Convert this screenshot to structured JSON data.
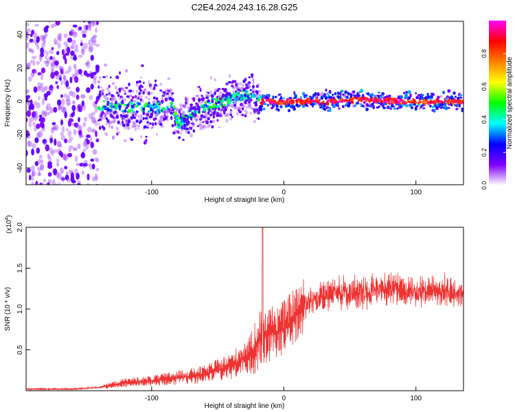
{
  "title": "C2E4.2024.243.16.28.G25",
  "chart_data": [
    {
      "type": "heatmap",
      "xlabel": "Height of straight line (km)",
      "ylabel": "Frequency (Hz)",
      "xlim": [
        -195,
        136
      ],
      "ylim": [
        -50,
        48
      ],
      "xticks": [
        "-100",
        "0",
        "100"
      ],
      "yticks": [
        "-40",
        "-20",
        "0",
        "20",
        "40"
      ],
      "ridge": {
        "x": [
          -195,
          -150,
          -120,
          -95,
          -85,
          -80,
          -75,
          -65,
          -55,
          -45,
          -35,
          -25,
          -20,
          0,
          30,
          60,
          90,
          120,
          136
        ],
        "y": [
          0,
          -2,
          -3,
          -4,
          -1,
          -14,
          -10,
          -6,
          -2,
          0,
          3,
          4,
          0,
          0,
          0,
          1,
          0,
          0,
          0
        ]
      },
      "colorbar": {
        "label": "Normalized spectral amplitude",
        "range": [
          0,
          1
        ],
        "ticks": [
          "0.0",
          "0.2",
          "0.4",
          "0.6",
          "0.8"
        ],
        "colors": [
          "#ffffff",
          "#8000ff",
          "#0000ff",
          "#00ffff",
          "#00ff00",
          "#ffff00",
          "#ff8000",
          "#ff0000",
          "#ff00ff"
        ]
      }
    },
    {
      "type": "line",
      "xlabel": "Height of straight line (km)",
      "ylabel": "SNR (10 * v/v)",
      "scale_label_base": "(x10",
      "scale_label_exp": "4",
      "scale_label_end": ")",
      "xlim": [
        -195,
        136
      ],
      "ylim": [
        0,
        2.0
      ],
      "xticks": [
        "-100",
        "0",
        "100"
      ],
      "yticks": [
        "0.5",
        "1.0",
        "1.5",
        "2.0"
      ],
      "series": [
        {
          "name": "SNR",
          "color": "#ee3333",
          "envelope_x": [
            -195,
            -160,
            -140,
            -120,
            -100,
            -80,
            -60,
            -40,
            -25,
            -18,
            -10,
            0,
            10,
            20,
            30,
            40,
            60,
            80,
            100,
            120,
            136
          ],
          "envelope_y": [
            0.02,
            0.02,
            0.04,
            0.1,
            0.12,
            0.16,
            0.2,
            0.3,
            0.45,
            0.65,
            0.7,
            0.75,
            0.95,
            1.1,
            1.15,
            1.2,
            1.2,
            1.25,
            1.2,
            1.22,
            1.2
          ],
          "spike": {
            "x": -16,
            "y": 2.05
          }
        }
      ]
    }
  ]
}
